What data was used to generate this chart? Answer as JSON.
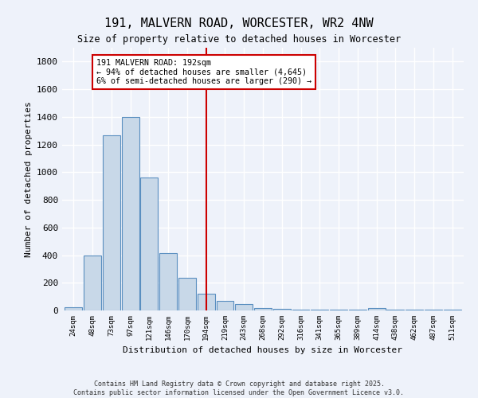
{
  "title": "191, MALVERN ROAD, WORCESTER, WR2 4NW",
  "subtitle": "Size of property relative to detached houses in Worcester",
  "xlabel": "Distribution of detached houses by size in Worcester",
  "ylabel": "Number of detached properties",
  "bar_color": "#c8d8e8",
  "bar_edge_color": "#5a8fc0",
  "background_color": "#eef2fa",
  "grid_color": "#ffffff",
  "categories": [
    "24sqm",
    "48sqm",
    "73sqm",
    "97sqm",
    "121sqm",
    "146sqm",
    "170sqm",
    "194sqm",
    "219sqm",
    "243sqm",
    "268sqm",
    "292sqm",
    "316sqm",
    "341sqm",
    "365sqm",
    "389sqm",
    "414sqm",
    "438sqm",
    "462sqm",
    "487sqm",
    "511sqm"
  ],
  "values": [
    25,
    395,
    1265,
    1400,
    960,
    415,
    235,
    120,
    70,
    45,
    20,
    10,
    5,
    5,
    5,
    5,
    15,
    5,
    5,
    5,
    5
  ],
  "ylim": [
    0,
    1900
  ],
  "yticks": [
    0,
    200,
    400,
    600,
    800,
    1000,
    1200,
    1400,
    1600,
    1800
  ],
  "vline_index": 7,
  "annotation_title": "191 MALVERN ROAD: 192sqm",
  "annotation_line1": "← 94% of detached houses are smaller (4,645)",
  "annotation_line2": "6% of semi-detached houses are larger (290) →",
  "vline_color": "#cc0000",
  "annotation_box_color": "#ffffff",
  "annotation_box_edge": "#cc0000",
  "footer_line1": "Contains HM Land Registry data © Crown copyright and database right 2025.",
  "footer_line2": "Contains public sector information licensed under the Open Government Licence v3.0."
}
